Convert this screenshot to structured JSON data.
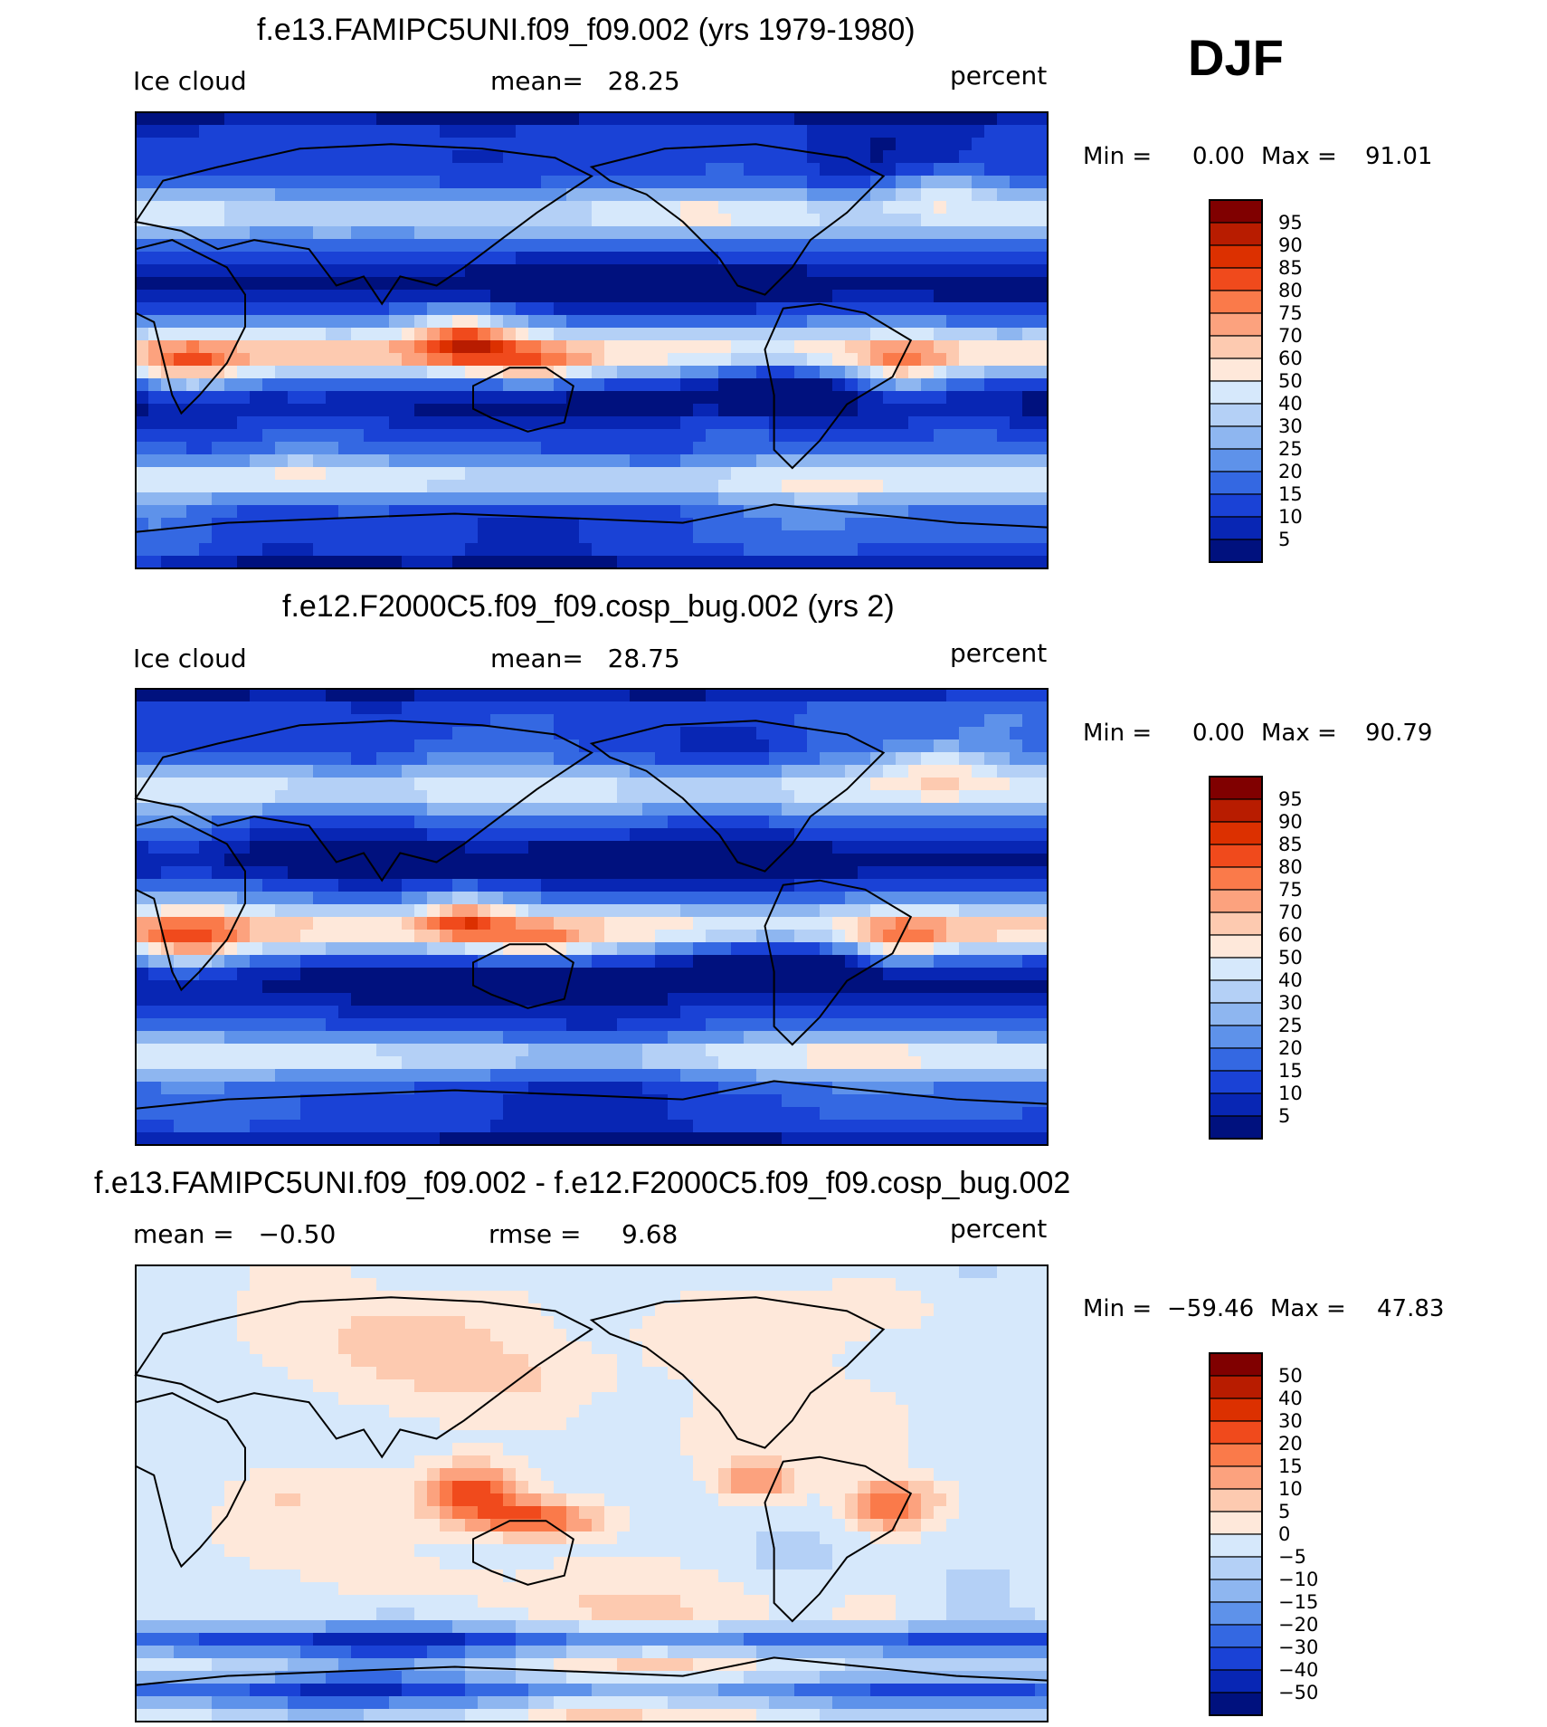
{
  "season": "DJF",
  "panels": [
    {
      "title": "f.e13.FAMIPC5UNI.f09_f09.002 (yrs 1979-1980)",
      "left_label": "Ice cloud",
      "center_label": "mean=   28.25",
      "units": "percent",
      "min_label": "Min =",
      "min_value": "0.00",
      "max_label": "Max =",
      "max_value": "91.01"
    },
    {
      "title": "f.e12.F2000C5.f09_f09.cosp_bug.002 (yrs 2)",
      "left_label": "Ice cloud",
      "center_label": "mean=   28.75",
      "units": "percent",
      "min_label": "Min =",
      "min_value": "0.00",
      "max_label": "Max =",
      "max_value": "90.79"
    },
    {
      "title": "f.e13.FAMIPC5UNI.f09_f09.002 - f.e12.F2000C5.f09_f09.cosp_bug.002",
      "left_label": "mean =   −0.50",
      "center_label": "rmse =     9.68",
      "units": "percent",
      "min_label": "Min =",
      "min_value": "−59.46",
      "max_label": "Max =",
      "max_value": "47.83"
    }
  ],
  "chart_data": [
    {
      "type": "heatmap",
      "title": "f.e13.FAMIPC5UNI.f09_f09.002 (yrs 1979-1980)",
      "variable": "Ice cloud",
      "units": "percent",
      "mean": 28.25,
      "min": 0.0,
      "max": 91.01,
      "levels": [
        "95",
        "90",
        "85",
        "80",
        "75",
        "70",
        "60",
        "50",
        "40",
        "30",
        "25",
        "20",
        "15",
        "10",
        "5"
      ],
      "colors": [
        "#800000",
        "#b81c00",
        "#dc3000",
        "#f04a1c",
        "#fa7a4a",
        "#fca27e",
        "#fdcab0",
        "#fee8da",
        "#d6e8fb",
        "#b4d0f6",
        "#8eb6f0",
        "#5e92ea",
        "#3468e2",
        "#1a42d6",
        "#0826b4",
        "#00117e"
      ]
    },
    {
      "type": "heatmap",
      "title": "f.e12.F2000C5.f09_f09.cosp_bug.002 (yrs 2)",
      "variable": "Ice cloud",
      "units": "percent",
      "mean": 28.75,
      "min": 0.0,
      "max": 90.79,
      "levels": [
        "95",
        "90",
        "85",
        "80",
        "75",
        "70",
        "60",
        "50",
        "40",
        "30",
        "25",
        "20",
        "15",
        "10",
        "5"
      ],
      "colors": [
        "#800000",
        "#b81c00",
        "#dc3000",
        "#f04a1c",
        "#fa7a4a",
        "#fca27e",
        "#fdcab0",
        "#fee8da",
        "#d6e8fb",
        "#b4d0f6",
        "#8eb6f0",
        "#5e92ea",
        "#3468e2",
        "#1a42d6",
        "#0826b4",
        "#00117e"
      ]
    },
    {
      "type": "heatmap",
      "title": "f.e13.FAMIPC5UNI.f09_f09.002 - f.e12.F2000C5.f09_f09.cosp_bug.002",
      "variable": "Ice cloud difference",
      "units": "percent",
      "mean": -0.5,
      "rmse": 9.68,
      "min": -59.46,
      "max": 47.83,
      "levels": [
        "50",
        "40",
        "30",
        "20",
        "15",
        "10",
        "5",
        "0",
        "−5",
        "−10",
        "−15",
        "−20",
        "−30",
        "−40",
        "−50"
      ],
      "colors": [
        "#800000",
        "#b81c00",
        "#dc3000",
        "#f04a1c",
        "#fa7a4a",
        "#fca27e",
        "#fdcab0",
        "#fee8da",
        "#d6e8fb",
        "#b4d0f6",
        "#8eb6f0",
        "#5e92ea",
        "#3468e2",
        "#1a42d6",
        "#0826b4",
        "#00117e"
      ]
    }
  ]
}
